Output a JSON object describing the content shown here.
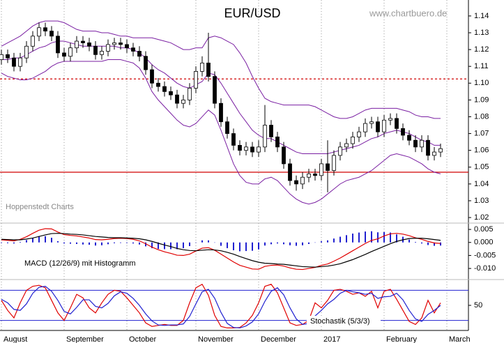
{
  "chart_data": [
    {
      "type": "candlestick",
      "title": "EUR/USD",
      "annotations": [
        "www.chartbuero.de",
        "Hoppenstedt Charts"
      ],
      "categories": [
        "August",
        null,
        null,
        null,
        null,
        null,
        null,
        null,
        null,
        null,
        "September",
        null,
        null,
        null,
        null,
        null,
        null,
        null,
        null,
        null,
        "October",
        null,
        null,
        null,
        null,
        null,
        null,
        null,
        null,
        null,
        null,
        "November",
        null,
        null,
        null,
        null,
        null,
        null,
        null,
        null,
        null,
        "December",
        null,
        null,
        null,
        null,
        null,
        null,
        null,
        null,
        null,
        "2017",
        null,
        null,
        null,
        null,
        null,
        null,
        null,
        null,
        null,
        "February",
        null,
        null,
        null,
        null,
        null,
        null,
        null,
        null,
        null,
        "March"
      ],
      "open": [
        1.114,
        1.117,
        1.115,
        1.11,
        1.115,
        1.122,
        1.128,
        1.133,
        1.131,
        1.128,
        1.118,
        1.116,
        1.121,
        1.125,
        1.124,
        1.122,
        1.117,
        1.119,
        1.123,
        1.124,
        1.123,
        1.121,
        1.119,
        1.116,
        1.108,
        1.1,
        1.098,
        1.095,
        1.093,
        1.088,
        1.09,
        1.097,
        1.107,
        1.112,
        1.104,
        1.088,
        1.077,
        1.07,
        1.063,
        1.06,
        1.062,
        1.059,
        1.062,
        1.075,
        1.068,
        1.062,
        1.052,
        1.042,
        1.04,
        1.044,
        1.046,
        1.045,
        1.052,
        1.048,
        1.057,
        1.062,
        1.064,
        1.068,
        1.071,
        1.076,
        1.077,
        1.071,
        1.078,
        1.079,
        1.073,
        1.069,
        1.066,
        1.062,
        1.066,
        1.057,
        1.059,
        null
      ],
      "high": [
        1.12,
        1.12,
        1.118,
        1.118,
        1.125,
        1.131,
        1.136,
        1.136,
        1.134,
        1.131,
        1.121,
        1.124,
        1.128,
        1.128,
        1.127,
        1.125,
        1.122,
        1.126,
        1.127,
        1.127,
        1.126,
        1.124,
        1.122,
        1.119,
        1.111,
        1.103,
        1.101,
        1.098,
        1.096,
        1.093,
        1.1,
        1.11,
        1.116,
        1.13,
        1.107,
        1.091,
        1.08,
        1.073,
        1.066,
        1.065,
        1.065,
        1.066,
        1.087,
        1.078,
        1.071,
        1.065,
        1.055,
        1.045,
        1.047,
        1.049,
        1.049,
        1.055,
        1.066,
        1.06,
        1.065,
        1.067,
        1.071,
        1.074,
        1.079,
        1.08,
        1.08,
        1.081,
        1.082,
        1.082,
        1.076,
        1.072,
        1.069,
        1.069,
        1.069,
        1.062,
        1.064,
        null
      ],
      "low": [
        1.111,
        1.112,
        1.107,
        1.107,
        1.112,
        1.119,
        1.125,
        1.128,
        1.125,
        1.115,
        1.113,
        1.113,
        1.118,
        1.121,
        1.119,
        1.114,
        1.114,
        1.116,
        1.12,
        1.12,
        1.118,
        1.116,
        1.113,
        1.105,
        1.097,
        1.095,
        1.092,
        1.09,
        1.085,
        1.085,
        1.087,
        1.094,
        1.104,
        1.101,
        1.085,
        1.074,
        1.067,
        1.06,
        1.057,
        1.057,
        1.056,
        1.056,
        1.059,
        1.065,
        1.059,
        1.049,
        1.039,
        1.036,
        1.037,
        1.041,
        1.042,
        1.042,
        1.035,
        1.045,
        1.054,
        1.059,
        1.061,
        1.065,
        1.068,
        1.073,
        1.068,
        1.068,
        1.075,
        1.07,
        1.066,
        1.063,
        1.059,
        1.059,
        1.054,
        1.054,
        1.056,
        null
      ],
      "close": [
        1.117,
        1.115,
        1.11,
        1.115,
        1.122,
        1.128,
        1.133,
        1.131,
        1.128,
        1.118,
        1.116,
        1.121,
        1.125,
        1.124,
        1.122,
        1.117,
        1.119,
        1.123,
        1.124,
        1.123,
        1.121,
        1.119,
        1.116,
        1.108,
        1.1,
        1.098,
        1.095,
        1.093,
        1.088,
        1.09,
        1.097,
        1.107,
        1.112,
        1.104,
        1.088,
        1.077,
        1.07,
        1.063,
        1.06,
        1.062,
        1.059,
        1.062,
        1.075,
        1.068,
        1.062,
        1.052,
        1.042,
        1.04,
        1.044,
        1.046,
        1.045,
        1.052,
        1.048,
        1.057,
        1.062,
        1.064,
        1.068,
        1.071,
        1.076,
        1.077,
        1.071,
        1.078,
        1.079,
        1.073,
        1.069,
        1.066,
        1.062,
        1.066,
        1.057,
        1.059,
        1.061,
        null
      ],
      "up_color": "#ffffff",
      "down_color": "#000000",
      "bands": [
        {
          "color": "#7a1fa2",
          "values": [
            1.122,
            1.124,
            1.126,
            1.128,
            1.131,
            1.134,
            1.136,
            1.137,
            1.137,
            1.137,
            1.136,
            1.134,
            1.132,
            1.131,
            1.131,
            1.131,
            1.13,
            1.13,
            1.129,
            1.128,
            1.128,
            1.127,
            1.127,
            1.127,
            1.127,
            1.126,
            1.125,
            1.124,
            1.122,
            1.12,
            1.12,
            1.121,
            1.121,
            1.127,
            1.128,
            1.127,
            1.125,
            1.123,
            1.118,
            1.112,
            1.104,
            1.097,
            1.091,
            1.089,
            1.088,
            1.087,
            1.087,
            1.087,
            1.087,
            1.087,
            1.086,
            1.084,
            1.082,
            1.08,
            1.079,
            1.079,
            1.08,
            1.082,
            1.084,
            1.085,
            1.085,
            1.085,
            1.085,
            1.085,
            1.084,
            1.083,
            1.081,
            1.08,
            1.08,
            1.079,
            1.079,
            null
          ]
        },
        {
          "color": "#7a1fa2",
          "values": [
            1.114,
            1.114,
            1.115,
            1.115,
            1.117,
            1.119,
            1.121,
            1.122,
            1.124,
            1.125,
            1.125,
            1.124,
            1.123,
            1.122,
            1.122,
            1.122,
            1.122,
            1.122,
            1.122,
            1.121,
            1.121,
            1.12,
            1.118,
            1.115,
            1.111,
            1.108,
            1.106,
            1.103,
            1.1,
            1.098,
            1.097,
            1.099,
            1.101,
            1.106,
            1.105,
            1.1,
            1.094,
            1.088,
            1.082,
            1.077,
            1.072,
            1.069,
            1.067,
            1.067,
            1.065,
            1.063,
            1.061,
            1.059,
            1.058,
            1.058,
            1.058,
            1.058,
            1.058,
            1.059,
            1.06,
            1.061,
            1.062,
            1.063,
            1.065,
            1.067,
            1.068,
            1.07,
            1.071,
            1.072,
            1.071,
            1.07,
            1.068,
            1.066,
            1.065,
            1.063,
            1.063,
            null
          ]
        },
        {
          "color": "#7a1fa2",
          "values": [
            1.106,
            1.104,
            1.103,
            1.102,
            1.102,
            1.103,
            1.105,
            1.107,
            1.11,
            1.112,
            1.113,
            1.113,
            1.113,
            1.113,
            1.113,
            1.113,
            1.113,
            1.114,
            1.114,
            1.114,
            1.113,
            1.112,
            1.109,
            1.103,
            1.095,
            1.09,
            1.086,
            1.082,
            1.078,
            1.075,
            1.074,
            1.076,
            1.08,
            1.084,
            1.081,
            1.072,
            1.062,
            1.052,
            1.045,
            1.041,
            1.04,
            1.04,
            1.043,
            1.044,
            1.042,
            1.038,
            1.034,
            1.031,
            1.029,
            1.028,
            1.029,
            1.031,
            1.034,
            1.037,
            1.04,
            1.042,
            1.043,
            1.044,
            1.046,
            1.048,
            1.051,
            1.054,
            1.057,
            1.058,
            1.057,
            1.056,
            1.054,
            1.052,
            1.049,
            1.047,
            1.046,
            null
          ]
        }
      ],
      "hlines": [
        {
          "value": 1.1025,
          "color": "#d00000",
          "dashed": true
        },
        {
          "value": 1.047,
          "color": "#d00000",
          "dashed": false
        }
      ],
      "ylim": [
        1.0167,
        1.1495
      ],
      "yticks": [
        1.02,
        1.03,
        1.04,
        1.05,
        1.06,
        1.07,
        1.08,
        1.09,
        {
          "value": 1.1,
          "label": "1.10"
        },
        1.11,
        1.12,
        1.13,
        1.14
      ]
    },
    {
      "type": "macd",
      "title": "MACD (12/26/9) mit Histogramm",
      "series": [
        {
          "color": "#e00000",
          "values": [
            0.001,
            0.0008,
            0.0006,
            0.0012,
            0.0022,
            0.0035,
            0.0047,
            0.0053,
            0.0052,
            0.004,
            0.003,
            0.0027,
            0.0025,
            0.0021,
            0.0017,
            0.0011,
            0.001,
            0.0012,
            0.0015,
            0.0016,
            0.0015,
            0.0012,
            0.0006,
            -0.0005,
            -0.0018,
            -0.0028,
            -0.0036,
            -0.0042,
            -0.0049,
            -0.005,
            -0.0045,
            -0.0033,
            -0.0022,
            -0.002,
            -0.003,
            -0.0045,
            -0.006,
            -0.0075,
            -0.0088,
            -0.0095,
            -0.0102,
            -0.0103,
            -0.0092,
            -0.0088,
            -0.0087,
            -0.0091,
            -0.0098,
            -0.0103,
            -0.0104,
            -0.01,
            -0.0096,
            -0.0088,
            -0.0083,
            -0.0072,
            -0.006,
            -0.0046,
            -0.0032,
            -0.0018,
            -0.0004,
            0.0008,
            0.0014,
            0.0025,
            0.0033,
            0.0035,
            0.0032,
            0.0026,
            0.0018,
            0.0012,
            0.0004,
            -0.0002,
            -0.0004,
            null
          ]
        },
        {
          "color": "#000000",
          "values": [
            0.0012,
            0.0011,
            0.001,
            0.001,
            0.0013,
            0.0017,
            0.0023,
            0.0029,
            0.0034,
            0.0035,
            0.0034,
            0.0032,
            0.0031,
            0.0029,
            0.0026,
            0.0023,
            0.0021,
            0.0019,
            0.0018,
            0.0018,
            0.0017,
            0.0016,
            0.0014,
            0.001,
            0.0004,
            -0.0003,
            -0.001,
            -0.0016,
            -0.0023,
            -0.0028,
            -0.0031,
            -0.0032,
            -0.003,
            -0.0028,
            -0.0029,
            -0.0032,
            -0.0038,
            -0.0045,
            -0.0054,
            -0.0062,
            -0.007,
            -0.0076,
            -0.008,
            -0.0081,
            -0.0083,
            -0.0084,
            -0.0087,
            -0.009,
            -0.0093,
            -0.0094,
            -0.0095,
            -0.0093,
            -0.0091,
            -0.0087,
            -0.0082,
            -0.0074,
            -0.0066,
            -0.0056,
            -0.0046,
            -0.0035,
            -0.0025,
            -0.0015,
            -0.0005,
            0.0004,
            0.001,
            0.0015,
            0.0016,
            0.0016,
            0.0014,
            0.0011,
            0.0008,
            null
          ]
        }
      ],
      "histogram": {
        "color": "#2020d0",
        "values": [
          -0.0002,
          -0.0003,
          -0.0004,
          0.0002,
          0.0009,
          0.0018,
          0.0024,
          0.0024,
          0.0018,
          0.0005,
          -0.0004,
          -0.0005,
          -0.0006,
          -0.0008,
          -0.0009,
          -0.0012,
          -0.0011,
          -0.0007,
          -0.0003,
          -0.0002,
          -0.0002,
          -0.0004,
          -0.0008,
          -0.0015,
          -0.0022,
          -0.0025,
          -0.0026,
          -0.0026,
          -0.0026,
          -0.0022,
          -0.0014,
          -0.0001,
          0.0008,
          0.0008,
          -0.0001,
          -0.0013,
          -0.0022,
          -0.003,
          -0.0034,
          -0.0033,
          -0.0032,
          -0.0027,
          -0.0012,
          -0.0007,
          -0.0004,
          -0.0007,
          -0.0011,
          -0.0013,
          -0.0011,
          -0.0006,
          -0.0001,
          0.0005,
          0.0008,
          0.0015,
          0.0022,
          0.0028,
          0.0034,
          0.0038,
          0.0042,
          0.0043,
          0.0039,
          0.004,
          0.0038,
          0.0031,
          0.0022,
          0.0011,
          0.0002,
          -0.0004,
          -0.001,
          -0.0013,
          -0.0012,
          null
        ]
      },
      "ylim": [
        -0.014,
        0.0069
      ],
      "yticks": [
        0.005,
        {
          "value": 0,
          "label": "0.000"
        },
        -0.005,
        {
          "value": -0.01,
          "label": "-0.010"
        }
      ]
    },
    {
      "type": "stochastic",
      "title": "Stochastik (5/3/3)",
      "series": [
        {
          "color": "#e00000",
          "values": [
            60,
            40,
            25,
            55,
            80,
            88,
            90,
            85,
            60,
            35,
            20,
            45,
            72,
            65,
            45,
            35,
            55,
            72,
            80,
            78,
            65,
            50,
            35,
            15,
            8,
            10,
            12,
            10,
            10,
            20,
            55,
            85,
            92,
            70,
            30,
            8,
            5,
            5,
            6,
            15,
            30,
            55,
            88,
            92,
            75,
            45,
            15,
            10,
            12,
            20,
            55,
            45,
            60,
            80,
            82,
            78,
            72,
            75,
            68,
            78,
            45,
            78,
            82,
            62,
            40,
            18,
            12,
            25,
            60,
            35,
            55,
            null
          ]
        },
        {
          "color": "#2020d0",
          "values": [
            62,
            55,
            42,
            40,
            53,
            74,
            86,
            88,
            78,
            60,
            38,
            33,
            46,
            61,
            61,
            48,
            45,
            54,
            69,
            77,
            74,
            64,
            50,
            33,
            19,
            11,
            10,
            11,
            11,
            13,
            28,
            53,
            77,
            82,
            64,
            36,
            14,
            6,
            5,
            9,
            17,
            33,
            58,
            78,
            85,
            71,
            45,
            23,
            12,
            14,
            29,
            40,
            53,
            62,
            74,
            80,
            77,
            75,
            72,
            74,
            64,
            67,
            68,
            74,
            61,
            40,
            23,
            18,
            32,
            40,
            50,
            null
          ]
        }
      ],
      "levels": [
        20,
        80
      ],
      "level_color": "#2020d0",
      "ylim": [
        0,
        100
      ],
      "yticks": [
        50
      ]
    }
  ]
}
